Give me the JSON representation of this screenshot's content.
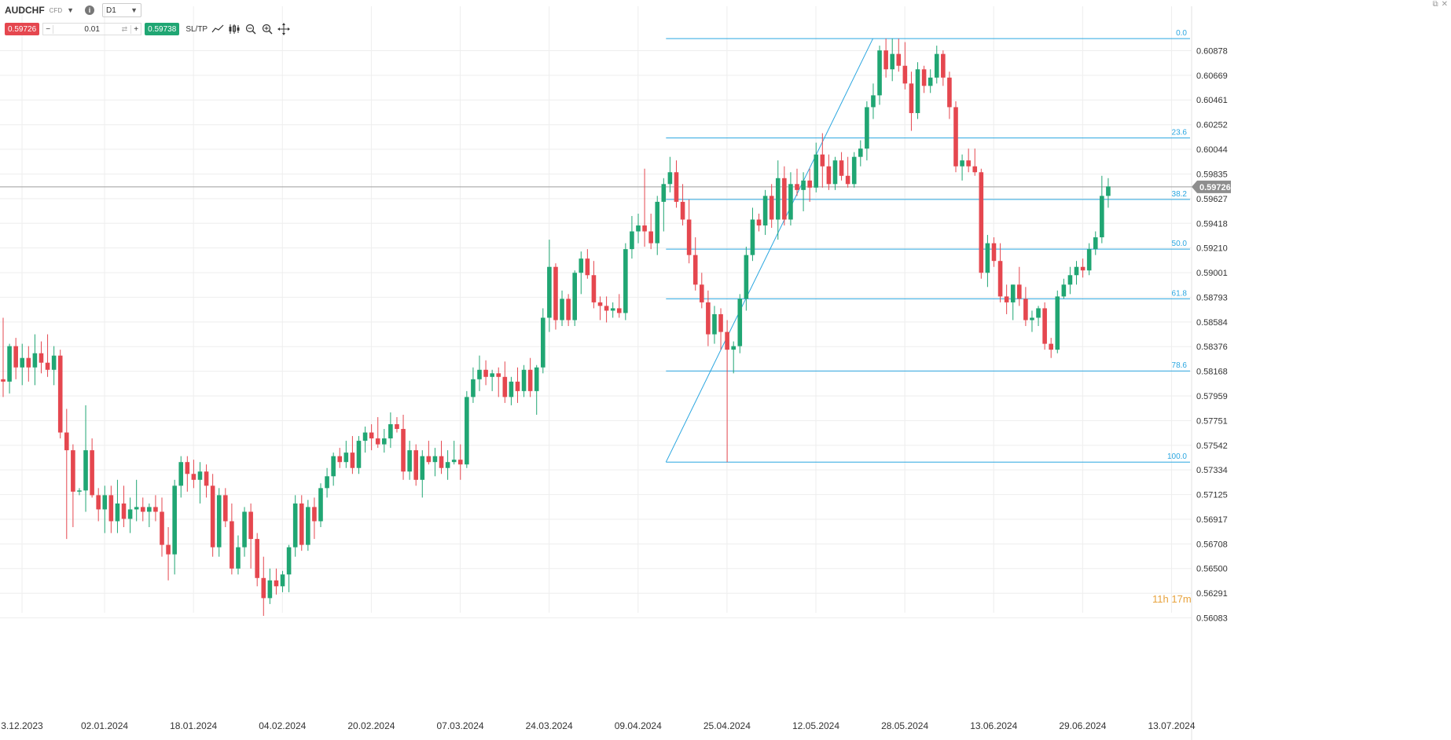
{
  "header": {
    "symbol": "AUDCHF",
    "instrument_badge": "CFD",
    "timeframe": "D1",
    "sell_price": "0.59726",
    "buy_price": "0.59738",
    "quantity": "0.01",
    "sltp_label": "SL/TP"
  },
  "colors": {
    "bull": "#20a673",
    "bear": "#e5474f",
    "fib": "#2aa6e0",
    "grid": "#eeeeee",
    "price_line": "#9e9e9e",
    "price_tag": "#8e8e8e",
    "axis_text": "#333333"
  },
  "timer": {
    "hours": "11h",
    "minutes": "17m"
  },
  "chart_data": {
    "type": "candlestick",
    "symbol": "AUDCHF",
    "timeframe": "D1",
    "current_price": "0.59726",
    "y_range": [
      0.5606,
      0.6112
    ],
    "y_ticks": [
      "0.60878",
      "0.60669",
      "0.60461",
      "0.60252",
      "0.60044",
      "0.59835",
      "0.59627",
      "0.59418",
      "0.59210",
      "0.59001",
      "0.58793",
      "0.58584",
      "0.58376",
      "0.58168",
      "0.57959",
      "0.57751",
      "0.57542",
      "0.57334",
      "0.57125",
      "0.56917",
      "0.56708",
      "0.56500",
      "0.56291",
      "0.56083"
    ],
    "x_ticks": [
      "3.12.2023",
      "02.01.2024",
      "18.01.2024",
      "04.02.2024",
      "20.02.2024",
      "07.03.2024",
      "24.03.2024",
      "09.04.2024",
      "25.04.2024",
      "12.05.2024",
      "28.05.2024",
      "13.06.2024",
      "29.06.2024",
      "13.07.2024"
    ],
    "x_tick_candle_index": [
      0,
      13,
      27,
      41,
      55,
      69,
      83,
      97,
      111,
      125,
      139,
      153,
      167,
      181
    ],
    "fibonacci": {
      "start_candle_index": 104,
      "end_candle_index": 132,
      "low": 0.574,
      "high": 0.6098,
      "levels": [
        {
          "label": "0.0",
          "price": 0.6098
        },
        {
          "label": "23.6",
          "price": 0.6014
        },
        {
          "label": "38.2",
          "price": 0.5962
        },
        {
          "label": "50.0",
          "price": 0.592
        },
        {
          "label": "61.8",
          "price": 0.5878
        },
        {
          "label": "78.6",
          "price": 0.5817
        },
        {
          "label": "100.0",
          "price": 0.574
        }
      ]
    },
    "candles": [
      {
        "o": 0.581,
        "h": 0.5862,
        "l": 0.5795,
        "c": 0.5808
      },
      {
        "o": 0.5808,
        "h": 0.584,
        "l": 0.5798,
        "c": 0.5838
      },
      {
        "o": 0.5838,
        "h": 0.5845,
        "l": 0.581,
        "c": 0.582
      },
      {
        "o": 0.582,
        "h": 0.584,
        "l": 0.5805,
        "c": 0.5828
      },
      {
        "o": 0.5828,
        "h": 0.5838,
        "l": 0.5808,
        "c": 0.582
      },
      {
        "o": 0.582,
        "h": 0.5848,
        "l": 0.5805,
        "c": 0.5832
      },
      {
        "o": 0.5832,
        "h": 0.5842,
        "l": 0.5815,
        "c": 0.5824
      },
      {
        "o": 0.5824,
        "h": 0.5848,
        "l": 0.5812,
        "c": 0.5818
      },
      {
        "o": 0.5818,
        "h": 0.5838,
        "l": 0.5805,
        "c": 0.583
      },
      {
        "o": 0.583,
        "h": 0.5835,
        "l": 0.576,
        "c": 0.5765
      },
      {
        "o": 0.5765,
        "h": 0.5785,
        "l": 0.5675,
        "c": 0.575
      },
      {
        "o": 0.575,
        "h": 0.5755,
        "l": 0.5685,
        "c": 0.5715
      },
      {
        "o": 0.5715,
        "h": 0.5718,
        "l": 0.5712,
        "c": 0.5716
      },
      {
        "o": 0.5716,
        "h": 0.5788,
        "l": 0.5698,
        "c": 0.575
      },
      {
        "o": 0.575,
        "h": 0.576,
        "l": 0.571,
        "c": 0.5712
      },
      {
        "o": 0.5712,
        "h": 0.5718,
        "l": 0.569,
        "c": 0.57
      },
      {
        "o": 0.57,
        "h": 0.572,
        "l": 0.568,
        "c": 0.5712
      },
      {
        "o": 0.5712,
        "h": 0.572,
        "l": 0.568,
        "c": 0.569
      },
      {
        "o": 0.569,
        "h": 0.5725,
        "l": 0.568,
        "c": 0.5705
      },
      {
        "o": 0.5705,
        "h": 0.572,
        "l": 0.5685,
        "c": 0.5692
      },
      {
        "o": 0.5692,
        "h": 0.571,
        "l": 0.568,
        "c": 0.57
      },
      {
        "o": 0.57,
        "h": 0.5725,
        "l": 0.569,
        "c": 0.5702
      },
      {
        "o": 0.5702,
        "h": 0.571,
        "l": 0.569,
        "c": 0.5698
      },
      {
        "o": 0.5698,
        "h": 0.5705,
        "l": 0.5685,
        "c": 0.5702
      },
      {
        "o": 0.5702,
        "h": 0.5712,
        "l": 0.569,
        "c": 0.5698
      },
      {
        "o": 0.5698,
        "h": 0.571,
        "l": 0.566,
        "c": 0.567
      },
      {
        "o": 0.567,
        "h": 0.5685,
        "l": 0.564,
        "c": 0.5662
      },
      {
        "o": 0.5662,
        "h": 0.5725,
        "l": 0.5645,
        "c": 0.572
      },
      {
        "o": 0.572,
        "h": 0.5745,
        "l": 0.571,
        "c": 0.574
      },
      {
        "o": 0.574,
        "h": 0.5745,
        "l": 0.5715,
        "c": 0.573
      },
      {
        "o": 0.573,
        "h": 0.5742,
        "l": 0.5718,
        "c": 0.5725
      },
      {
        "o": 0.5725,
        "h": 0.574,
        "l": 0.5705,
        "c": 0.5732
      },
      {
        "o": 0.5732,
        "h": 0.5738,
        "l": 0.571,
        "c": 0.572
      },
      {
        "o": 0.572,
        "h": 0.573,
        "l": 0.566,
        "c": 0.5668
      },
      {
        "o": 0.5668,
        "h": 0.5718,
        "l": 0.566,
        "c": 0.5712
      },
      {
        "o": 0.5712,
        "h": 0.5718,
        "l": 0.5685,
        "c": 0.569
      },
      {
        "o": 0.569,
        "h": 0.5705,
        "l": 0.5645,
        "c": 0.565
      },
      {
        "o": 0.565,
        "h": 0.5678,
        "l": 0.5645,
        "c": 0.5668
      },
      {
        "o": 0.5668,
        "h": 0.5702,
        "l": 0.566,
        "c": 0.5698
      },
      {
        "o": 0.5698,
        "h": 0.5705,
        "l": 0.565,
        "c": 0.5675
      },
      {
        "o": 0.5675,
        "h": 0.568,
        "l": 0.5635,
        "c": 0.5642
      },
      {
        "o": 0.5642,
        "h": 0.566,
        "l": 0.561,
        "c": 0.5625
      },
      {
        "o": 0.5625,
        "h": 0.565,
        "l": 0.562,
        "c": 0.564
      },
      {
        "o": 0.564,
        "h": 0.565,
        "l": 0.5628,
        "c": 0.5635
      },
      {
        "o": 0.5635,
        "h": 0.5648,
        "l": 0.563,
        "c": 0.5645
      },
      {
        "o": 0.5645,
        "h": 0.567,
        "l": 0.563,
        "c": 0.5668
      },
      {
        "o": 0.5668,
        "h": 0.5712,
        "l": 0.566,
        "c": 0.5705
      },
      {
        "o": 0.5705,
        "h": 0.5712,
        "l": 0.5665,
        "c": 0.567
      },
      {
        "o": 0.567,
        "h": 0.5708,
        "l": 0.5665,
        "c": 0.5702
      },
      {
        "o": 0.5702,
        "h": 0.571,
        "l": 0.5675,
        "c": 0.569
      },
      {
        "o": 0.569,
        "h": 0.5722,
        "l": 0.5685,
        "c": 0.5718
      },
      {
        "o": 0.5718,
        "h": 0.5735,
        "l": 0.571,
        "c": 0.5728
      },
      {
        "o": 0.5728,
        "h": 0.5748,
        "l": 0.572,
        "c": 0.5745
      },
      {
        "o": 0.5745,
        "h": 0.5752,
        "l": 0.5735,
        "c": 0.574
      },
      {
        "o": 0.574,
        "h": 0.5758,
        "l": 0.5735,
        "c": 0.5748
      },
      {
        "o": 0.5748,
        "h": 0.5762,
        "l": 0.573,
        "c": 0.5735
      },
      {
        "o": 0.5735,
        "h": 0.5762,
        "l": 0.573,
        "c": 0.5758
      },
      {
        "o": 0.5758,
        "h": 0.577,
        "l": 0.5748,
        "c": 0.5765
      },
      {
        "o": 0.5765,
        "h": 0.5772,
        "l": 0.575,
        "c": 0.576
      },
      {
        "o": 0.576,
        "h": 0.5778,
        "l": 0.5752,
        "c": 0.5755
      },
      {
        "o": 0.5755,
        "h": 0.5768,
        "l": 0.5748,
        "c": 0.576
      },
      {
        "o": 0.576,
        "h": 0.5782,
        "l": 0.5752,
        "c": 0.5772
      },
      {
        "o": 0.5772,
        "h": 0.5778,
        "l": 0.5765,
        "c": 0.5768
      },
      {
        "o": 0.5768,
        "h": 0.578,
        "l": 0.5725,
        "c": 0.5732
      },
      {
        "o": 0.5732,
        "h": 0.5758,
        "l": 0.5725,
        "c": 0.575
      },
      {
        "o": 0.575,
        "h": 0.5755,
        "l": 0.572,
        "c": 0.5725
      },
      {
        "o": 0.5725,
        "h": 0.575,
        "l": 0.571,
        "c": 0.5745
      },
      {
        "o": 0.5745,
        "h": 0.5758,
        "l": 0.5738,
        "c": 0.574
      },
      {
        "o": 0.574,
        "h": 0.5752,
        "l": 0.5728,
        "c": 0.5745
      },
      {
        "o": 0.5745,
        "h": 0.5758,
        "l": 0.573,
        "c": 0.5735
      },
      {
        "o": 0.5735,
        "h": 0.575,
        "l": 0.5725,
        "c": 0.574
      },
      {
        "o": 0.574,
        "h": 0.5758,
        "l": 0.5738,
        "c": 0.5742
      },
      {
        "o": 0.5742,
        "h": 0.5755,
        "l": 0.5725,
        "c": 0.5738
      },
      {
        "o": 0.5738,
        "h": 0.58,
        "l": 0.5735,
        "c": 0.5795
      },
      {
        "o": 0.5795,
        "h": 0.582,
        "l": 0.579,
        "c": 0.581
      },
      {
        "o": 0.581,
        "h": 0.583,
        "l": 0.58,
        "c": 0.5818
      },
      {
        "o": 0.5818,
        "h": 0.5826,
        "l": 0.5805,
        "c": 0.5812
      },
      {
        "o": 0.5812,
        "h": 0.5818,
        "l": 0.58,
        "c": 0.5815
      },
      {
        "o": 0.5815,
        "h": 0.582,
        "l": 0.5795,
        "c": 0.5812
      },
      {
        "o": 0.5812,
        "h": 0.5825,
        "l": 0.579,
        "c": 0.5795
      },
      {
        "o": 0.5795,
        "h": 0.5812,
        "l": 0.5788,
        "c": 0.5808
      },
      {
        "o": 0.5808,
        "h": 0.582,
        "l": 0.579,
        "c": 0.58
      },
      {
        "o": 0.58,
        "h": 0.5822,
        "l": 0.5795,
        "c": 0.5818
      },
      {
        "o": 0.5818,
        "h": 0.5828,
        "l": 0.5795,
        "c": 0.58
      },
      {
        "o": 0.58,
        "h": 0.5822,
        "l": 0.578,
        "c": 0.582
      },
      {
        "o": 0.582,
        "h": 0.587,
        "l": 0.5815,
        "c": 0.5862
      },
      {
        "o": 0.5862,
        "h": 0.5928,
        "l": 0.585,
        "c": 0.5905
      },
      {
        "o": 0.5905,
        "h": 0.5908,
        "l": 0.5852,
        "c": 0.586
      },
      {
        "o": 0.586,
        "h": 0.5885,
        "l": 0.5855,
        "c": 0.5878
      },
      {
        "o": 0.5878,
        "h": 0.5882,
        "l": 0.5855,
        "c": 0.586
      },
      {
        "o": 0.586,
        "h": 0.5902,
        "l": 0.5855,
        "c": 0.59
      },
      {
        "o": 0.59,
        "h": 0.5918,
        "l": 0.5882,
        "c": 0.5912
      },
      {
        "o": 0.5912,
        "h": 0.592,
        "l": 0.5895,
        "c": 0.5898
      },
      {
        "o": 0.5898,
        "h": 0.591,
        "l": 0.587,
        "c": 0.5875
      },
      {
        "o": 0.5875,
        "h": 0.588,
        "l": 0.586,
        "c": 0.5872
      },
      {
        "o": 0.5872,
        "h": 0.588,
        "l": 0.5858,
        "c": 0.5868
      },
      {
        "o": 0.5868,
        "h": 0.5875,
        "l": 0.5862,
        "c": 0.587
      },
      {
        "o": 0.587,
        "h": 0.5882,
        "l": 0.5862,
        "c": 0.5866
      },
      {
        "o": 0.5866,
        "h": 0.5925,
        "l": 0.586,
        "c": 0.592
      },
      {
        "o": 0.592,
        "h": 0.5948,
        "l": 0.5912,
        "c": 0.5935
      },
      {
        "o": 0.5935,
        "h": 0.595,
        "l": 0.5925,
        "c": 0.594
      },
      {
        "o": 0.594,
        "h": 0.5988,
        "l": 0.5922,
        "c": 0.5935
      },
      {
        "o": 0.5935,
        "h": 0.595,
        "l": 0.592,
        "c": 0.5925
      },
      {
        "o": 0.5925,
        "h": 0.5965,
        "l": 0.5915,
        "c": 0.596
      },
      {
        "o": 0.596,
        "h": 0.598,
        "l": 0.5935,
        "c": 0.5975
      },
      {
        "o": 0.5975,
        "h": 0.5998,
        "l": 0.5968,
        "c": 0.5985
      },
      {
        "o": 0.5985,
        "h": 0.5995,
        "l": 0.5955,
        "c": 0.596
      },
      {
        "o": 0.596,
        "h": 0.5975,
        "l": 0.594,
        "c": 0.5945
      },
      {
        "o": 0.5945,
        "h": 0.5962,
        "l": 0.5908,
        "c": 0.5915
      },
      {
        "o": 0.5915,
        "h": 0.593,
        "l": 0.5885,
        "c": 0.589
      },
      {
        "o": 0.589,
        "h": 0.59,
        "l": 0.587,
        "c": 0.5875
      },
      {
        "o": 0.5875,
        "h": 0.5885,
        "l": 0.5838,
        "c": 0.5848
      },
      {
        "o": 0.5848,
        "h": 0.5872,
        "l": 0.584,
        "c": 0.5865
      },
      {
        "o": 0.5865,
        "h": 0.587,
        "l": 0.5835,
        "c": 0.585
      },
      {
        "o": 0.585,
        "h": 0.586,
        "l": 0.574,
        "c": 0.5835
      },
      {
        "o": 0.5835,
        "h": 0.5842,
        "l": 0.5815,
        "c": 0.5838
      },
      {
        "o": 0.5838,
        "h": 0.5882,
        "l": 0.5832,
        "c": 0.5878
      },
      {
        "o": 0.5878,
        "h": 0.5922,
        "l": 0.5868,
        "c": 0.5915
      },
      {
        "o": 0.5915,
        "h": 0.5955,
        "l": 0.591,
        "c": 0.5945
      },
      {
        "o": 0.5945,
        "h": 0.595,
        "l": 0.5935,
        "c": 0.594
      },
      {
        "o": 0.594,
        "h": 0.597,
        "l": 0.5932,
        "c": 0.5965
      },
      {
        "o": 0.5965,
        "h": 0.5975,
        "l": 0.5938,
        "c": 0.5945
      },
      {
        "o": 0.5945,
        "h": 0.5995,
        "l": 0.5928,
        "c": 0.598
      },
      {
        "o": 0.598,
        "h": 0.599,
        "l": 0.594,
        "c": 0.5945
      },
      {
        "o": 0.5945,
        "h": 0.5985,
        "l": 0.594,
        "c": 0.5975
      },
      {
        "o": 0.5975,
        "h": 0.5988,
        "l": 0.5965,
        "c": 0.597
      },
      {
        "o": 0.597,
        "h": 0.5985,
        "l": 0.5952,
        "c": 0.5978
      },
      {
        "o": 0.5978,
        "h": 0.5988,
        "l": 0.596,
        "c": 0.5972
      },
      {
        "o": 0.5972,
        "h": 0.601,
        "l": 0.5968,
        "c": 0.6
      },
      {
        "o": 0.6,
        "h": 0.6018,
        "l": 0.5972,
        "c": 0.599
      },
      {
        "o": 0.599,
        "h": 0.6,
        "l": 0.597,
        "c": 0.5975
      },
      {
        "o": 0.5975,
        "h": 0.5998,
        "l": 0.597,
        "c": 0.5995
      },
      {
        "o": 0.5995,
        "h": 0.6002,
        "l": 0.5978,
        "c": 0.5982
      },
      {
        "o": 0.5982,
        "h": 0.5998,
        "l": 0.5972,
        "c": 0.5975
      },
      {
        "o": 0.5975,
        "h": 0.6002,
        "l": 0.5972,
        "c": 0.5998
      },
      {
        "o": 0.5998,
        "h": 0.6012,
        "l": 0.599,
        "c": 0.6005
      },
      {
        "o": 0.6005,
        "h": 0.6045,
        "l": 0.5995,
        "c": 0.604
      },
      {
        "o": 0.604,
        "h": 0.606,
        "l": 0.603,
        "c": 0.605
      },
      {
        "o": 0.605,
        "h": 0.6092,
        "l": 0.6042,
        "c": 0.6088
      },
      {
        "o": 0.6088,
        "h": 0.6098,
        "l": 0.6065,
        "c": 0.6072
      },
      {
        "o": 0.6072,
        "h": 0.6098,
        "l": 0.6062,
        "c": 0.6085
      },
      {
        "o": 0.6085,
        "h": 0.6098,
        "l": 0.607,
        "c": 0.6075
      },
      {
        "o": 0.6075,
        "h": 0.6095,
        "l": 0.6055,
        "c": 0.606
      },
      {
        "o": 0.606,
        "h": 0.607,
        "l": 0.602,
        "c": 0.6035
      },
      {
        "o": 0.6035,
        "h": 0.6078,
        "l": 0.603,
        "c": 0.6072
      },
      {
        "o": 0.6072,
        "h": 0.6075,
        "l": 0.6052,
        "c": 0.6058
      },
      {
        "o": 0.6058,
        "h": 0.6072,
        "l": 0.6052,
        "c": 0.6065
      },
      {
        "o": 0.6065,
        "h": 0.6092,
        "l": 0.606,
        "c": 0.6085
      },
      {
        "o": 0.6085,
        "h": 0.6088,
        "l": 0.6058,
        "c": 0.6065
      },
      {
        "o": 0.6065,
        "h": 0.607,
        "l": 0.603,
        "c": 0.604
      },
      {
        "o": 0.604,
        "h": 0.6045,
        "l": 0.5985,
        "c": 0.599
      },
      {
        "o": 0.599,
        "h": 0.6,
        "l": 0.5978,
        "c": 0.5995
      },
      {
        "o": 0.5995,
        "h": 0.6005,
        "l": 0.5985,
        "c": 0.599
      },
      {
        "o": 0.599,
        "h": 0.6005,
        "l": 0.5982,
        "c": 0.5985
      },
      {
        "o": 0.5985,
        "h": 0.5988,
        "l": 0.5895,
        "c": 0.59
      },
      {
        "o": 0.59,
        "h": 0.5932,
        "l": 0.5888,
        "c": 0.5925
      },
      {
        "o": 0.5925,
        "h": 0.593,
        "l": 0.5905,
        "c": 0.591
      },
      {
        "o": 0.591,
        "h": 0.5925,
        "l": 0.5875,
        "c": 0.588
      },
      {
        "o": 0.588,
        "h": 0.589,
        "l": 0.5865,
        "c": 0.5875
      },
      {
        "o": 0.5875,
        "h": 0.589,
        "l": 0.586,
        "c": 0.589
      },
      {
        "o": 0.589,
        "h": 0.5905,
        "l": 0.5872,
        "c": 0.5878
      },
      {
        "o": 0.5878,
        "h": 0.5888,
        "l": 0.5855,
        "c": 0.586
      },
      {
        "o": 0.586,
        "h": 0.5868,
        "l": 0.585,
        "c": 0.5862
      },
      {
        "o": 0.5862,
        "h": 0.5872,
        "l": 0.5855,
        "c": 0.587
      },
      {
        "o": 0.587,
        "h": 0.5875,
        "l": 0.5835,
        "c": 0.584
      },
      {
        "o": 0.584,
        "h": 0.5845,
        "l": 0.5828,
        "c": 0.5835
      },
      {
        "o": 0.5835,
        "h": 0.5885,
        "l": 0.5832,
        "c": 0.588
      },
      {
        "o": 0.588,
        "h": 0.5895,
        "l": 0.5878,
        "c": 0.589
      },
      {
        "o": 0.589,
        "h": 0.5905,
        "l": 0.5882,
        "c": 0.5898
      },
      {
        "o": 0.5898,
        "h": 0.591,
        "l": 0.589,
        "c": 0.5905
      },
      {
        "o": 0.5905,
        "h": 0.5912,
        "l": 0.5896,
        "c": 0.5902
      },
      {
        "o": 0.5902,
        "h": 0.5925,
        "l": 0.5898,
        "c": 0.592
      },
      {
        "o": 0.592,
        "h": 0.5935,
        "l": 0.5915,
        "c": 0.593
      },
      {
        "o": 0.593,
        "h": 0.5982,
        "l": 0.5925,
        "c": 0.5965
      },
      {
        "o": 0.5965,
        "h": 0.598,
        "l": 0.5955,
        "c": 0.5973
      }
    ]
  }
}
